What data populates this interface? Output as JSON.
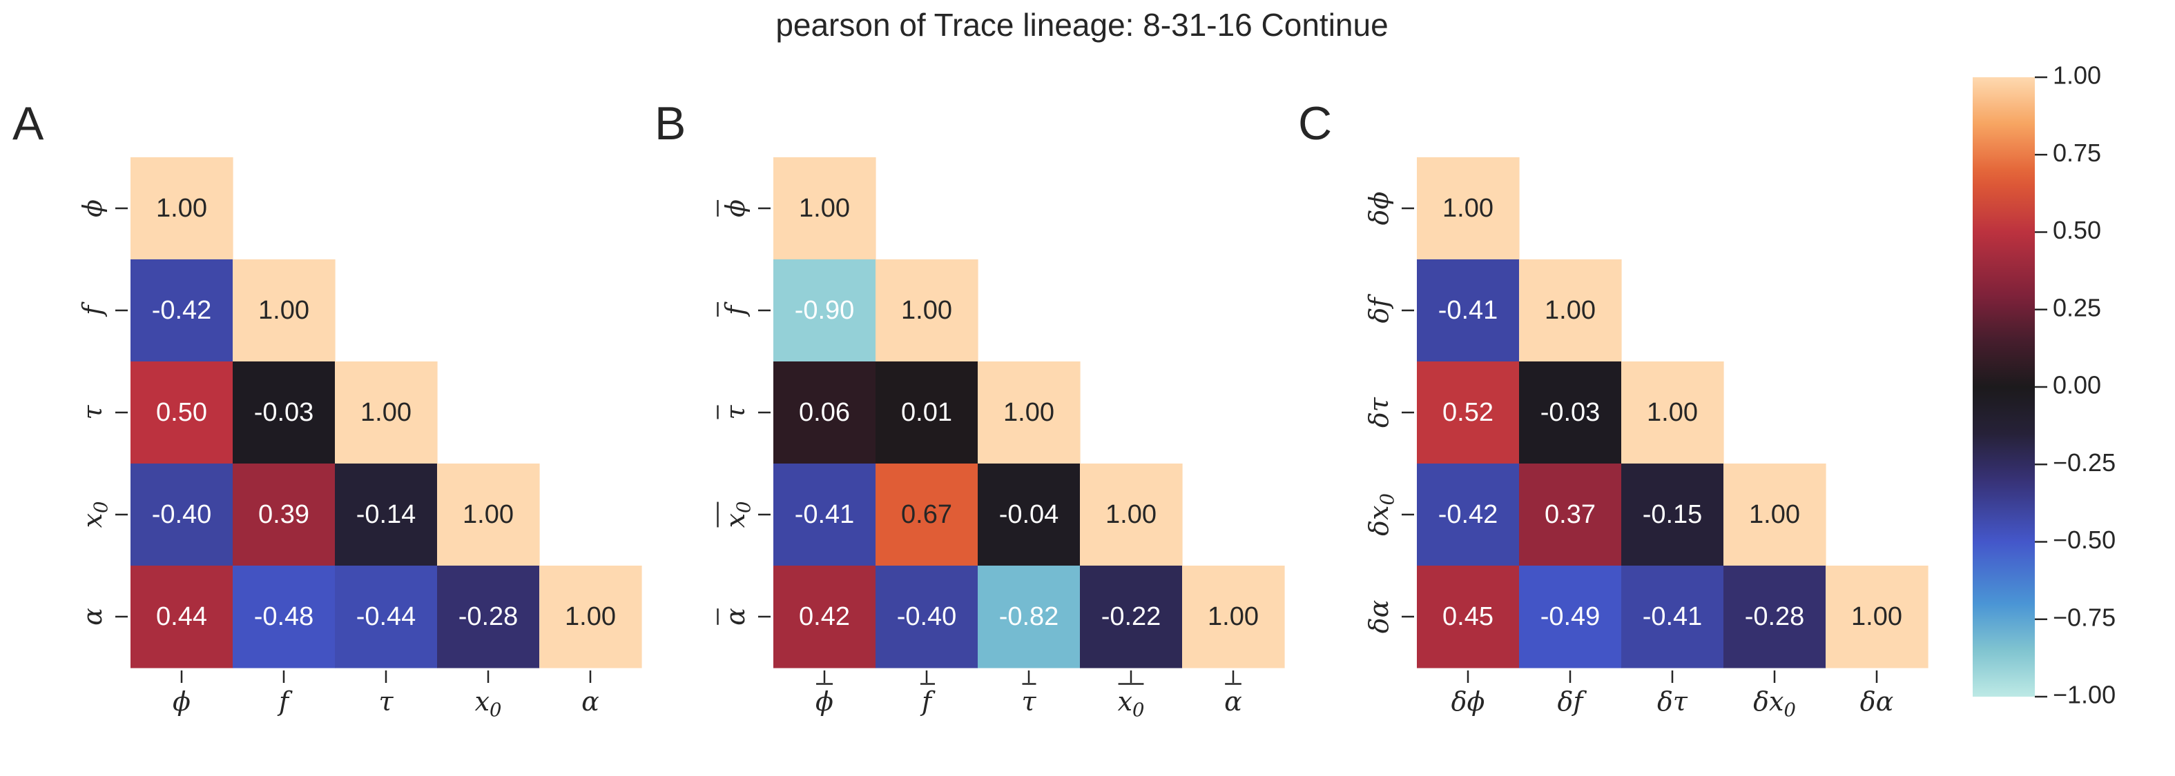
{
  "chart_data": {
    "type": "heatmap",
    "title": "pearson of Trace lineage: 8-31-16 Continue",
    "colorbar": {
      "min": -1.0,
      "max": 1.0,
      "ticks": [
        "1.00",
        "0.75",
        "0.50",
        "0.25",
        "0.00",
        "−0.25",
        "−0.50",
        "−0.75",
        "−1.00"
      ],
      "tick_values": [
        1.0,
        0.75,
        0.5,
        0.25,
        0.0,
        -0.25,
        -0.5,
        -0.75,
        -1.0
      ]
    },
    "panels": [
      {
        "letter": "A",
        "labels": [
          {
            "base": "ϕ",
            "prefix": "",
            "sub": "",
            "bar": ""
          },
          {
            "base": "f",
            "prefix": "",
            "sub": "",
            "bar": ""
          },
          {
            "base": "τ",
            "prefix": "",
            "sub": "",
            "bar": ""
          },
          {
            "base": "x",
            "prefix": "",
            "sub": "0",
            "bar": ""
          },
          {
            "base": "α",
            "prefix": "",
            "sub": "",
            "bar": ""
          }
        ],
        "matrix": [
          [
            1.0
          ],
          [
            -0.42,
            1.0
          ],
          [
            0.5,
            -0.03,
            1.0
          ],
          [
            -0.4,
            0.39,
            -0.14,
            1.0
          ],
          [
            0.44,
            -0.48,
            -0.44,
            -0.28,
            1.0
          ]
        ]
      },
      {
        "letter": "B",
        "labels": [
          {
            "base": "ϕ",
            "prefix": "",
            "sub": "",
            "bar": "full"
          },
          {
            "base": "f",
            "prefix": "",
            "sub": "",
            "bar": "full"
          },
          {
            "base": "τ",
            "prefix": "",
            "sub": "",
            "bar": "full"
          },
          {
            "base": "x",
            "prefix": "",
            "sub": "0",
            "bar": "full"
          },
          {
            "base": "α",
            "prefix": "",
            "sub": "",
            "bar": "full"
          }
        ],
        "matrix": [
          [
            1.0
          ],
          [
            -0.9,
            1.0
          ],
          [
            0.06,
            0.01,
            1.0
          ],
          [
            -0.41,
            0.67,
            -0.04,
            1.0
          ],
          [
            0.42,
            -0.4,
            -0.82,
            -0.22,
            1.0
          ]
        ]
      },
      {
        "letter": "C",
        "labels": [
          {
            "base": "ϕ",
            "prefix": "δ",
            "sub": "",
            "bar": ""
          },
          {
            "base": "f",
            "prefix": "δ",
            "sub": "",
            "bar": ""
          },
          {
            "base": "τ",
            "prefix": "δ",
            "sub": "",
            "bar": ""
          },
          {
            "base": "x",
            "prefix": "δ",
            "sub": "0",
            "bar": ""
          },
          {
            "base": "α",
            "prefix": "δ",
            "sub": "",
            "bar": ""
          }
        ],
        "matrix": [
          [
            1.0
          ],
          [
            -0.41,
            1.0
          ],
          [
            0.52,
            -0.03,
            1.0
          ],
          [
            -0.42,
            0.37,
            -0.15,
            1.0
          ],
          [
            0.45,
            -0.49,
            -0.41,
            -0.28,
            1.0
          ]
        ]
      }
    ]
  }
}
